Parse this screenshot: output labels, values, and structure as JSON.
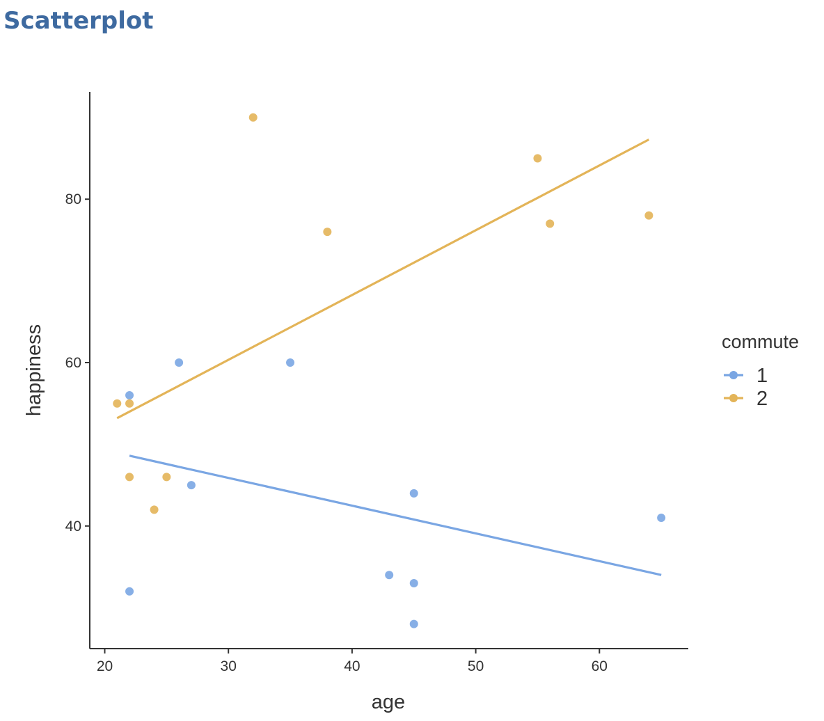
{
  "page": {
    "title": "Scatterplot"
  },
  "chart_data": {
    "type": "scatter",
    "title": "",
    "xlabel": "age",
    "ylabel": "happiness",
    "xlim": [
      19,
      67
    ],
    "ylim": [
      25,
      93
    ],
    "x_ticks": [
      20,
      30,
      40,
      50,
      60
    ],
    "y_ticks": [
      40,
      60,
      80
    ],
    "grid": false,
    "legend": {
      "title": "commute",
      "placement": "right"
    },
    "series": [
      {
        "name": "1",
        "color": "#7aa6e3",
        "points": [
          {
            "x": 22,
            "y": 56
          },
          {
            "x": 26,
            "y": 60
          },
          {
            "x": 35,
            "y": 60
          },
          {
            "x": 27,
            "y": 45
          },
          {
            "x": 22,
            "y": 32
          },
          {
            "x": 45,
            "y": 44
          },
          {
            "x": 43,
            "y": 34
          },
          {
            "x": 45,
            "y": 33
          },
          {
            "x": 45,
            "y": 28
          },
          {
            "x": 65,
            "y": 41
          }
        ],
        "trend": {
          "x1": 22,
          "y1": 48.6,
          "x2": 65,
          "y2": 34.0
        }
      },
      {
        "name": "2",
        "color": "#e3b458",
        "points": [
          {
            "x": 21,
            "y": 55
          },
          {
            "x": 22,
            "y": 55
          },
          {
            "x": 22,
            "y": 46
          },
          {
            "x": 25,
            "y": 46
          },
          {
            "x": 24,
            "y": 42
          },
          {
            "x": 32,
            "y": 90
          },
          {
            "x": 38,
            "y": 76
          },
          {
            "x": 55,
            "y": 85
          },
          {
            "x": 56,
            "y": 77
          },
          {
            "x": 64,
            "y": 78
          }
        ],
        "trend": {
          "x1": 21,
          "y1": 53.2,
          "x2": 64,
          "y2": 87.3
        }
      }
    ]
  }
}
